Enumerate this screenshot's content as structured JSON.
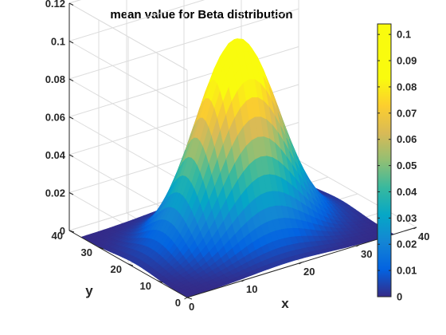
{
  "chart_data": {
    "type": "surface",
    "title": "mean value for Beta distribution",
    "xlabel": "x",
    "ylabel": "y",
    "zlabel": "",
    "xlim": [
      0,
      40
    ],
    "ylim": [
      0,
      40
    ],
    "zlim": [
      0,
      0.12
    ],
    "x_ticks": [
      0,
      10,
      20,
      30,
      40
    ],
    "y_ticks": [
      0,
      10,
      20,
      30,
      40
    ],
    "z_ticks": [
      0,
      0.02,
      0.04,
      0.06,
      0.08,
      0.1,
      0.12
    ],
    "x_tick_labels": [
      "0",
      "10",
      "20",
      "30",
      "40"
    ],
    "y_tick_labels": [
      "0",
      "10",
      "20",
      "30",
      "40"
    ],
    "z_tick_labels": [
      "0",
      "0.02",
      "0.04",
      "0.06",
      "0.08",
      "0.1",
      "0.12"
    ],
    "surface": {
      "grid_x": [
        0,
        36
      ],
      "grid_y": [
        0,
        36
      ],
      "peak_x": 18,
      "peak_y": 18,
      "peak_value": 0.104,
      "spread": 6.5
    },
    "colormap": "parula",
    "grid": true,
    "colorbar": {
      "range": [
        0,
        0.104
      ],
      "ticks": [
        0,
        0.01,
        0.02,
        0.03,
        0.04,
        0.05,
        0.06,
        0.07,
        0.08,
        0.09,
        0.1
      ],
      "tick_labels": [
        "0",
        "0.01",
        "0.02",
        "0.03",
        "0.04",
        "0.05",
        "0.06",
        "0.07",
        "0.08",
        "0.09",
        "0.1"
      ]
    }
  }
}
